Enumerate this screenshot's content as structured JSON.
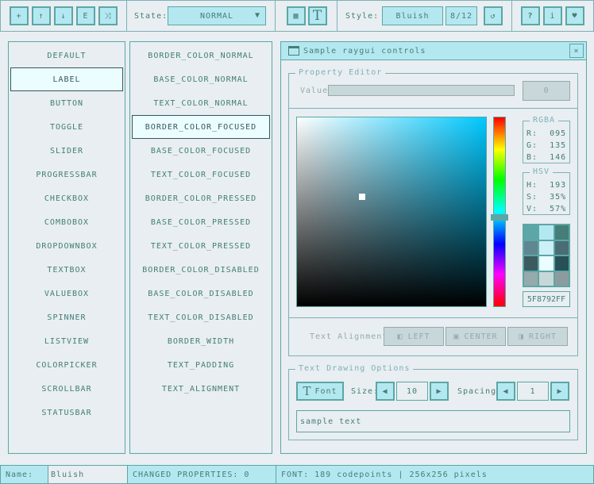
{
  "toolbar": {
    "icons": [
      "file-new-icon",
      "file-open-icon",
      "file-save-icon",
      "file-export-icon",
      "shuffle-icon"
    ],
    "state_label": "State:",
    "state_value": "NORMAL",
    "style_label": "Style:",
    "style_value": "Bluish",
    "style_index": "8/12",
    "font_icon": "T"
  },
  "controls": [
    "DEFAULT",
    "LABEL",
    "BUTTON",
    "TOGGLE",
    "SLIDER",
    "PROGRESSBAR",
    "CHECKBOX",
    "COMBOBOX",
    "DROPDOWNBOX",
    "TEXTBOX",
    "VALUEBOX",
    "SPINNER",
    "LISTVIEW",
    "COLORPICKER",
    "SCROLLBAR",
    "STATUSBAR"
  ],
  "controls_selected": 1,
  "properties": [
    "BORDER_COLOR_NORMAL",
    "BASE_COLOR_NORMAL",
    "TEXT_COLOR_NORMAL",
    "BORDER_COLOR_FOCUSED",
    "BASE_COLOR_FOCUSED",
    "TEXT_COLOR_FOCUSED",
    "BORDER_COLOR_PRESSED",
    "BASE_COLOR_PRESSED",
    "TEXT_COLOR_PRESSED",
    "BORDER_COLOR_DISABLED",
    "BASE_COLOR_DISABLED",
    "TEXT_COLOR_DISABLED",
    "BORDER_WIDTH",
    "TEXT_PADDING",
    "TEXT_ALIGNMENT"
  ],
  "properties_selected": 3,
  "window": {
    "title": "Sample raygui controls",
    "property_editor": {
      "title": "Property Editor",
      "value_label": "Value:",
      "value": "0",
      "rgba": {
        "title": "RGBA",
        "r_label": "R:",
        "r": "095",
        "g_label": "G:",
        "g": "135",
        "b_label": "B:",
        "b": "146"
      },
      "hsv": {
        "title": "HSV",
        "h_label": "H:",
        "h": "193",
        "s_label": "S:",
        "s": "35%",
        "v_label": "V:",
        "v": "57%"
      },
      "hex": "5F8792FF",
      "hue_value": 193,
      "align_label": "Text Alignment:",
      "align_left": "LEFT",
      "align_center": "CENTER",
      "align_right": "RIGHT"
    },
    "text_options": {
      "title": "Text Drawing Options",
      "font_button": "Font",
      "size_label": "Size:",
      "size": "10",
      "spacing_label": "Spacing:",
      "spacing": "1",
      "sample_text": "sample text"
    }
  },
  "swatches": [
    "#5ca6a6",
    "#b4e8f0",
    "#447e77",
    "#5f8792",
    "#cdeff7",
    "#4c6c74",
    "#3b5b5f",
    "#eafeff",
    "#275057",
    "#96aaac",
    "#c8d7d9",
    "#8c9c9e"
  ],
  "statusbar": {
    "name_label": "Name:",
    "name_value": "Bluish",
    "changed": "CHANGED PROPERTIES: 0",
    "font_info": "FONT: 189 codepoints | 256x256 pixels"
  },
  "colors": {
    "background": "#e8eef1",
    "border": "#5ca6a6",
    "base": "#b4e8f0",
    "text": "#447e77"
  }
}
